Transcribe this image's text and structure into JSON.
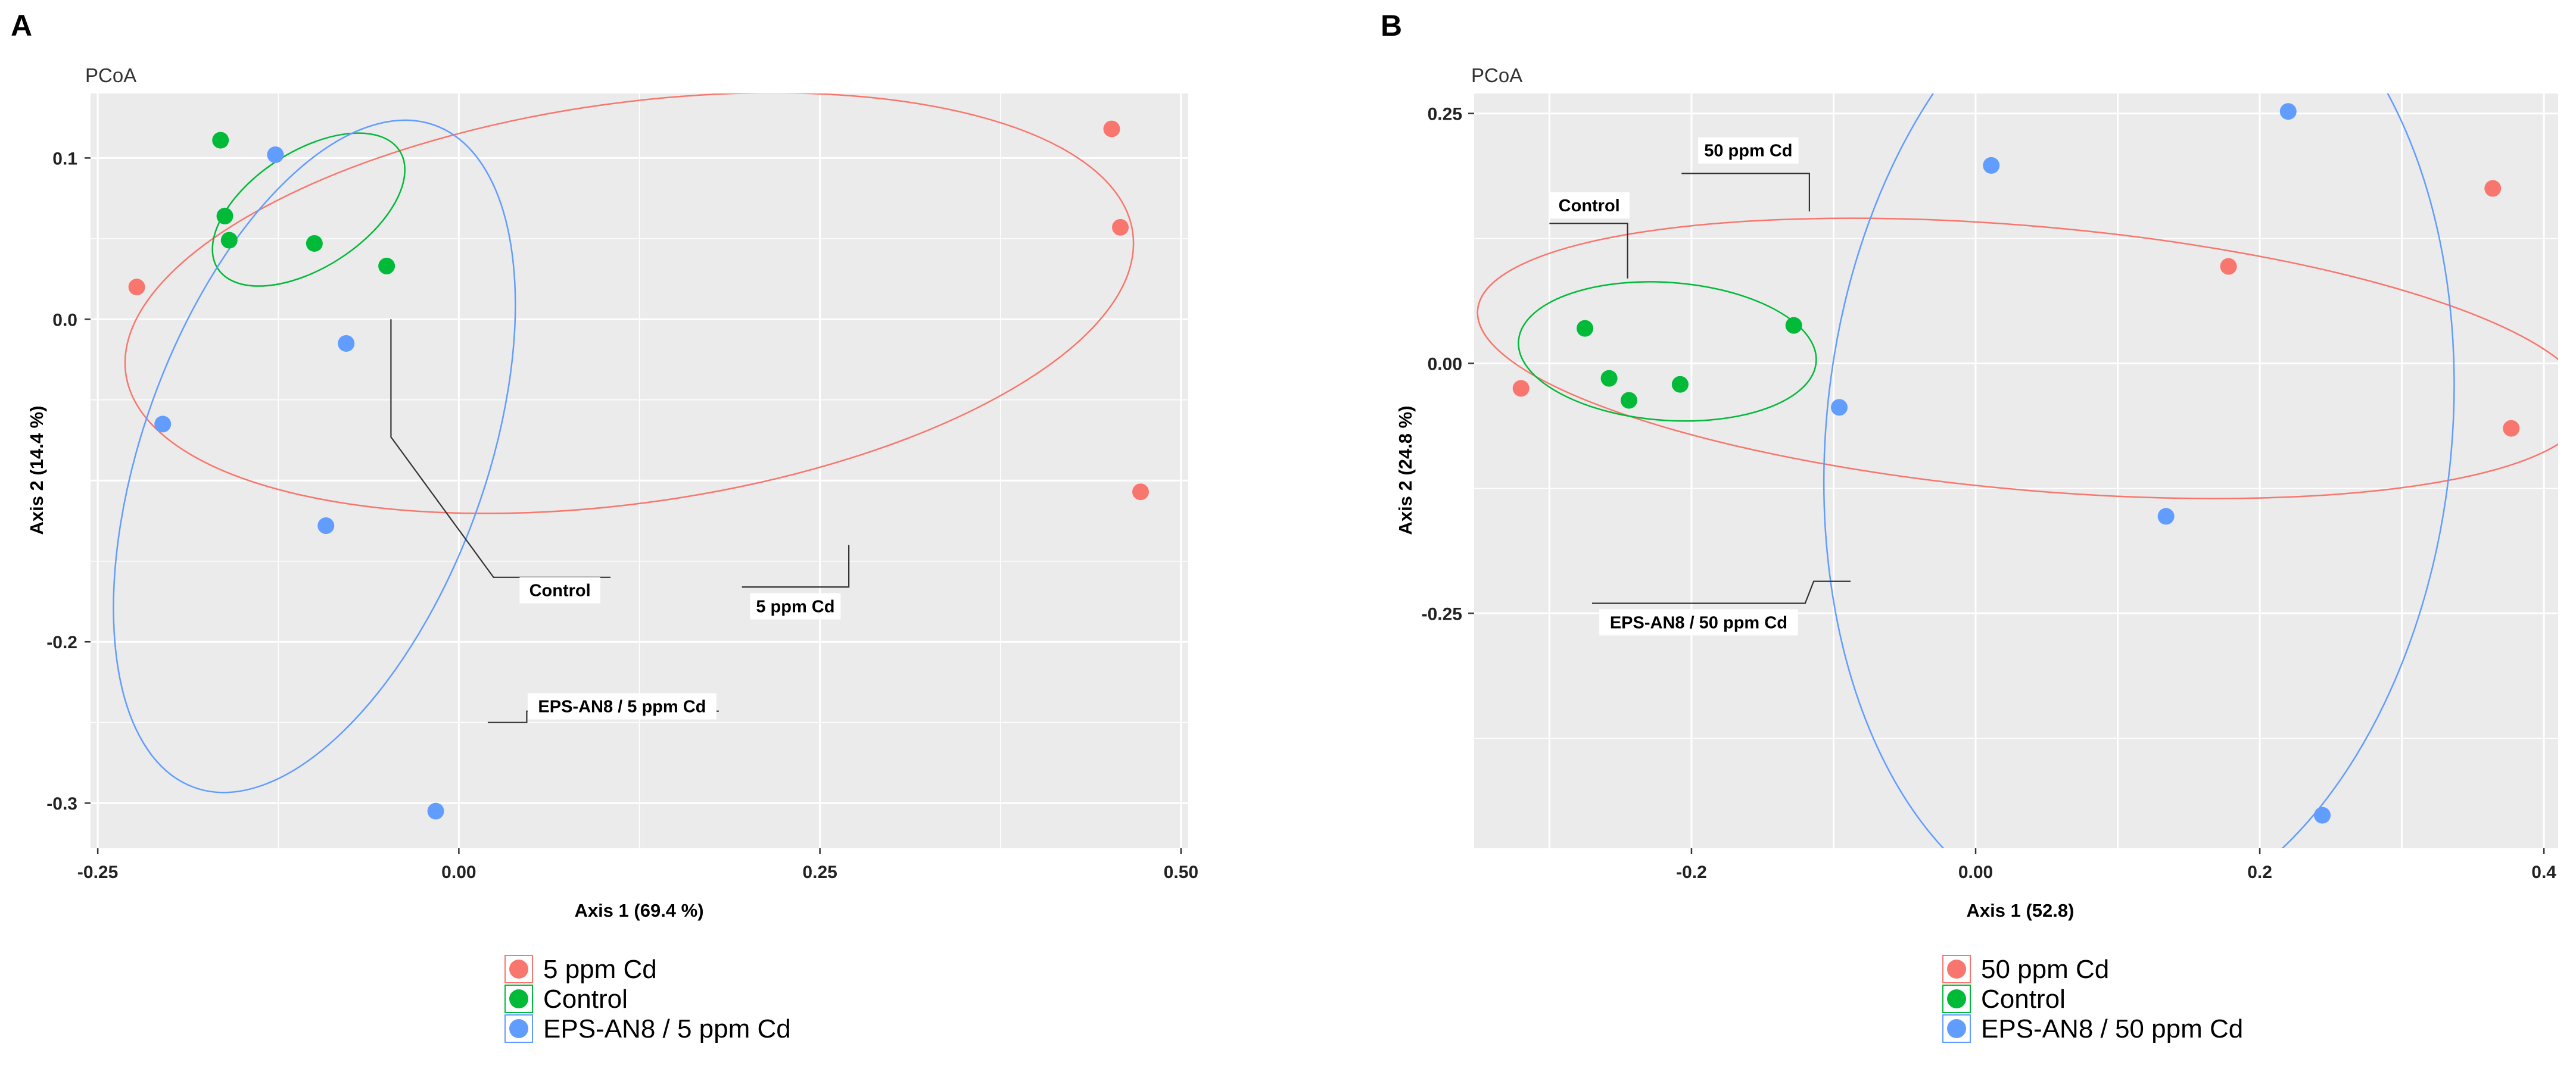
{
  "colors": {
    "group_a": "#F8766D",
    "group_b": "#00BA38",
    "group_c": "#619CFF",
    "panel_bg": "#EBEBEB",
    "grid": "#FFFFFF"
  },
  "chart_data": [
    {
      "id": "A",
      "panel_label": "A",
      "type": "scatter",
      "subtitle": "PCoA",
      "xlabel": "Axis 1 (69.4 %)",
      "ylabel": "Axis 2 (14.4 %)",
      "xlim": [
        -0.255,
        0.505
      ],
      "ylim": [
        -0.328,
        0.14
      ],
      "xticks": [
        -0.25,
        0.0,
        0.25,
        0.5
      ],
      "xtick_labels": [
        "-0.25",
        "0.00",
        "0.25",
        "0.50"
      ],
      "yticks": [
        0.1,
        0.0,
        -0.2,
        -0.3
      ],
      "ytick_labels": [
        "0.1",
        "0.0",
        "-0.2",
        "-0.3"
      ],
      "xgrid_major": [
        -0.25,
        0.0,
        0.25,
        0.5
      ],
      "xgrid_minor": [
        -0.125,
        0.125,
        0.375
      ],
      "ygrid_major": [
        0.1,
        0.0,
        -0.1,
        -0.2,
        -0.3
      ],
      "ygrid_minor": [
        0.05,
        -0.05,
        -0.15,
        -0.25
      ],
      "series": [
        {
          "name": "5 ppm Cd",
          "color_key": "group_a",
          "points": [
            [
              -0.223,
              0.02
            ],
            [
              0.452,
              0.118
            ],
            [
              0.458,
              0.057
            ],
            [
              0.472,
              -0.107
            ]
          ],
          "ellipse": {
            "cx": 0.118,
            "cy": 0.01,
            "rx": 0.352,
            "ry": 0.124,
            "angle": -8
          }
        },
        {
          "name": "Control",
          "color_key": "group_b",
          "points": [
            [
              -0.165,
              0.111
            ],
            [
              -0.162,
              0.064
            ],
            [
              -0.159,
              0.049
            ],
            [
              -0.1,
              0.047
            ],
            [
              -0.05,
              0.033
            ]
          ],
          "ellipse": {
            "cx": -0.104,
            "cy": 0.068,
            "rx": 0.075,
            "ry": 0.036,
            "angle": -33
          }
        },
        {
          "name": "EPS-AN8 / 5 ppm Cd",
          "color_key": "group_c",
          "points": [
            [
              -0.127,
              0.102
            ],
            [
              -0.078,
              -0.015
            ],
            [
              -0.205,
              -0.065
            ],
            [
              -0.092,
              -0.128
            ],
            [
              -0.016,
              -0.305
            ]
          ],
          "ellipse": {
            "cx": -0.1,
            "cy": -0.085,
            "rx": 0.244,
            "ry": 0.106,
            "angle": -70
          }
        }
      ],
      "annotations": [
        {
          "label": "Control",
          "path": [
            [
              -0.047,
              0.0
            ],
            [
              -0.047,
              -0.073
            ],
            [
              0.024,
              -0.16
            ],
            [
              0.105,
              -0.16
            ]
          ],
          "anchor": [
            0.07,
            -0.168
          ]
        },
        {
          "label": "5 ppm Cd",
          "path": [
            [
              0.27,
              -0.14
            ],
            [
              0.27,
              -0.166
            ],
            [
              0.196,
              -0.166
            ]
          ],
          "anchor": [
            0.233,
            -0.178
          ]
        },
        {
          "label": "EPS-AN8 / 5 ppm Cd",
          "path": [
            [
              0.02,
              -0.25
            ],
            [
              0.047,
              -0.25
            ],
            [
              0.047,
              -0.243
            ],
            [
              0.18,
              -0.243
            ]
          ],
          "anchor": [
            0.113,
            -0.24
          ]
        }
      ],
      "legend": [
        "5 ppm Cd",
        "Control",
        "EPS-AN8 / 5 ppm Cd"
      ]
    },
    {
      "id": "B",
      "panel_label": "B",
      "type": "scatter",
      "subtitle": "PCoA",
      "xlabel": "Axis 1 (52.8)",
      "ylabel": "Axis 2 (24.8 %)",
      "xlim": [
        -0.353,
        0.41
      ],
      "ylim": [
        -0.485,
        0.27
      ],
      "xticks": [
        -0.2,
        0.0,
        0.2,
        0.4
      ],
      "xtick_labels": [
        "-0.2",
        "0.00",
        "0.2",
        "0.4"
      ],
      "yticks": [
        0.25,
        0.0,
        -0.25
      ],
      "ytick_labels": [
        "0.25",
        "0.00",
        "-0.25"
      ],
      "xgrid_major": [
        -0.3,
        -0.2,
        -0.1,
        0.0,
        0.1,
        0.2,
        0.3,
        0.4
      ],
      "xgrid_minor": [],
      "ygrid_major": [
        0.25,
        0.0,
        -0.25
      ],
      "ygrid_minor": [
        0.125,
        -0.125,
        -0.375
      ],
      "series": [
        {
          "name": "50 ppm Cd",
          "color_key": "group_a",
          "points": [
            [
              -0.32,
              -0.025
            ],
            [
              0.178,
              0.097
            ],
            [
              0.364,
              0.175
            ],
            [
              0.377,
              -0.065
            ]
          ],
          "ellipse": {
            "cx": 0.04,
            "cy": 0.005,
            "rx": 0.392,
            "ry": 0.132,
            "angle": 5
          }
        },
        {
          "name": "Control",
          "color_key": "group_b",
          "points": [
            [
              -0.275,
              0.035
            ],
            [
              -0.258,
              -0.015
            ],
            [
              -0.244,
              -0.037
            ],
            [
              -0.208,
              -0.021
            ],
            [
              -0.128,
              0.038
            ]
          ],
          "ellipse": {
            "cx": -0.217,
            "cy": 0.012,
            "rx": 0.105,
            "ry": 0.069,
            "angle": 4
          }
        },
        {
          "name": "EPS-AN8 / 50 ppm Cd",
          "color_key": "group_c",
          "points": [
            [
              0.011,
              0.198
            ],
            [
              0.22,
              0.252
            ],
            [
              -0.096,
              -0.044
            ],
            [
              0.134,
              -0.153
            ],
            [
              0.244,
              -0.452
            ]
          ],
          "ellipse": {
            "cx": 0.115,
            "cy": -0.07,
            "rx": 0.22,
            "ry": 0.495,
            "angle": 6
          }
        }
      ],
      "annotations": [
        {
          "label": "50 ppm Cd",
          "path": [
            [
              -0.117,
              0.152
            ],
            [
              -0.117,
              0.19
            ],
            [
              -0.207,
              0.19
            ]
          ],
          "anchor": [
            -0.16,
            0.213
          ]
        },
        {
          "label": "Control",
          "path": [
            [
              -0.245,
              0.085
            ],
            [
              -0.245,
              0.14
            ],
            [
              -0.3,
              0.14
            ]
          ],
          "anchor": [
            -0.272,
            0.158
          ]
        },
        {
          "label": "EPS-AN8 / 50 ppm Cd",
          "path": [
            [
              -0.088,
              -0.218
            ],
            [
              -0.114,
              -0.218
            ],
            [
              -0.12,
              -0.24
            ],
            [
              -0.27,
              -0.24
            ]
          ],
          "anchor": [
            -0.195,
            -0.259
          ]
        }
      ],
      "legend": [
        "50 ppm Cd",
        "Control",
        "EPS-AN8 / 50 ppm Cd"
      ]
    }
  ]
}
